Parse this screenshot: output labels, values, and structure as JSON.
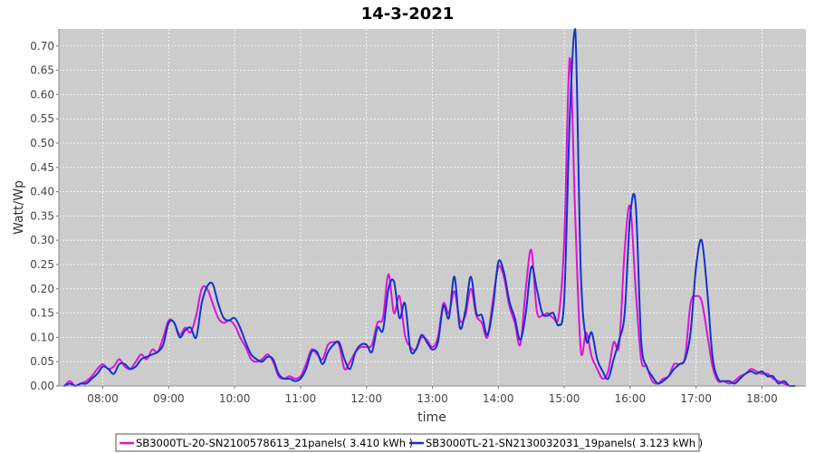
{
  "chart_data": {
    "type": "line",
    "title": "14-3-2021",
    "xlabel": "time",
    "ylabel": "Watt/Wp",
    "xlim": [
      "07:20",
      "18:40"
    ],
    "ylim": [
      0,
      0.735
    ],
    "x_ticks": [
      "08:00",
      "09:00",
      "10:00",
      "11:00",
      "12:00",
      "13:00",
      "14:00",
      "15:00",
      "16:00",
      "17:00",
      "18:00"
    ],
    "y_ticks": [
      "0.00",
      "0.05",
      "0.10",
      "0.15",
      "0.20",
      "0.25",
      "0.30",
      "0.35",
      "0.40",
      "0.45",
      "0.50",
      "0.55",
      "0.60",
      "0.65",
      "0.70"
    ],
    "grid": true,
    "plot_background": "#cccccc",
    "legend_position": "bottom",
    "series": [
      {
        "name": "SB3000TL-20-SN2100578613_21panels( 3.410 kWh )",
        "color": "#dd11dd",
        "points": [
          [
            "07:25",
            0.0
          ],
          [
            "07:30",
            0.01
          ],
          [
            "07:35",
            0.0
          ],
          [
            "07:40",
            0.005
          ],
          [
            "07:45",
            0.01
          ],
          [
            "07:50",
            0.02
          ],
          [
            "07:55",
            0.035
          ],
          [
            "08:00",
            0.045
          ],
          [
            "08:05",
            0.035
          ],
          [
            "08:10",
            0.04
          ],
          [
            "08:15",
            0.055
          ],
          [
            "08:20",
            0.04
          ],
          [
            "08:25",
            0.035
          ],
          [
            "08:30",
            0.05
          ],
          [
            "08:35",
            0.065
          ],
          [
            "08:40",
            0.055
          ],
          [
            "08:45",
            0.075
          ],
          [
            "08:50",
            0.07
          ],
          [
            "08:55",
            0.1
          ],
          [
            "09:00",
            0.135
          ],
          [
            "09:05",
            0.13
          ],
          [
            "09:10",
            0.105
          ],
          [
            "09:15",
            0.12
          ],
          [
            "09:20",
            0.11
          ],
          [
            "09:25",
            0.145
          ],
          [
            "09:30",
            0.2
          ],
          [
            "09:35",
            0.2
          ],
          [
            "09:40",
            0.17
          ],
          [
            "09:45",
            0.14
          ],
          [
            "09:50",
            0.13
          ],
          [
            "09:55",
            0.135
          ],
          [
            "10:00",
            0.125
          ],
          [
            "10:05",
            0.1
          ],
          [
            "10:10",
            0.08
          ],
          [
            "10:15",
            0.055
          ],
          [
            "10:20",
            0.05
          ],
          [
            "10:25",
            0.055
          ],
          [
            "10:30",
            0.065
          ],
          [
            "10:35",
            0.05
          ],
          [
            "10:40",
            0.02
          ],
          [
            "10:45",
            0.015
          ],
          [
            "10:50",
            0.02
          ],
          [
            "10:55",
            0.015
          ],
          [
            "11:00",
            0.02
          ],
          [
            "11:05",
            0.045
          ],
          [
            "11:10",
            0.075
          ],
          [
            "11:15",
            0.065
          ],
          [
            "11:20",
            0.055
          ],
          [
            "11:25",
            0.085
          ],
          [
            "11:30",
            0.09
          ],
          [
            "11:35",
            0.085
          ],
          [
            "11:40",
            0.035
          ],
          [
            "11:45",
            0.05
          ],
          [
            "11:50",
            0.07
          ],
          [
            "11:55",
            0.08
          ],
          [
            "12:00",
            0.08
          ],
          [
            "12:05",
            0.085
          ],
          [
            "12:10",
            0.13
          ],
          [
            "12:15",
            0.14
          ],
          [
            "12:20",
            0.23
          ],
          [
            "12:25",
            0.15
          ],
          [
            "12:30",
            0.185
          ],
          [
            "12:35",
            0.105
          ],
          [
            "12:40",
            0.08
          ],
          [
            "12:45",
            0.075
          ],
          [
            "12:50",
            0.1
          ],
          [
            "12:55",
            0.095
          ],
          [
            "13:00",
            0.08
          ],
          [
            "13:05",
            0.1
          ],
          [
            "13:10",
            0.17
          ],
          [
            "13:15",
            0.15
          ],
          [
            "13:20",
            0.195
          ],
          [
            "13:25",
            0.135
          ],
          [
            "13:30",
            0.145
          ],
          [
            "13:35",
            0.2
          ],
          [
            "13:40",
            0.145
          ],
          [
            "13:45",
            0.13
          ],
          [
            "13:50",
            0.1
          ],
          [
            "13:55",
            0.175
          ],
          [
            "14:00",
            0.245
          ],
          [
            "14:05",
            0.225
          ],
          [
            "14:10",
            0.165
          ],
          [
            "14:15",
            0.13
          ],
          [
            "14:20",
            0.085
          ],
          [
            "14:25",
            0.2
          ],
          [
            "14:30",
            0.28
          ],
          [
            "14:35",
            0.155
          ],
          [
            "14:40",
            0.145
          ],
          [
            "14:45",
            0.15
          ],
          [
            "14:50",
            0.14
          ],
          [
            "14:55",
            0.145
          ],
          [
            "15:00",
            0.3
          ],
          [
            "15:05",
            0.675
          ],
          [
            "15:10",
            0.35
          ],
          [
            "15:15",
            0.075
          ],
          [
            "15:20",
            0.11
          ],
          [
            "15:25",
            0.06
          ],
          [
            "15:30",
            0.035
          ],
          [
            "15:35",
            0.015
          ],
          [
            "15:40",
            0.03
          ],
          [
            "15:45",
            0.09
          ],
          [
            "15:50",
            0.085
          ],
          [
            "15:55",
            0.28
          ],
          [
            "16:00",
            0.37
          ],
          [
            "16:05",
            0.2
          ],
          [
            "16:10",
            0.055
          ],
          [
            "16:15",
            0.04
          ],
          [
            "16:20",
            0.01
          ],
          [
            "16:25",
            0.005
          ],
          [
            "16:30",
            0.015
          ],
          [
            "16:35",
            0.02
          ],
          [
            "16:40",
            0.045
          ],
          [
            "16:45",
            0.045
          ],
          [
            "16:50",
            0.06
          ],
          [
            "16:55",
            0.17
          ],
          [
            "17:00",
            0.185
          ],
          [
            "17:05",
            0.175
          ],
          [
            "17:10",
            0.11
          ],
          [
            "17:15",
            0.04
          ],
          [
            "17:20",
            0.01
          ],
          [
            "17:25",
            0.01
          ],
          [
            "17:30",
            0.005
          ],
          [
            "17:35",
            0.01
          ],
          [
            "17:40",
            0.02
          ],
          [
            "17:45",
            0.025
          ],
          [
            "17:50",
            0.035
          ],
          [
            "17:55",
            0.03
          ],
          [
            "18:00",
            0.025
          ],
          [
            "18:05",
            0.025
          ],
          [
            "18:10",
            0.015
          ],
          [
            "18:15",
            0.01
          ],
          [
            "18:20",
            0.005
          ],
          [
            "18:25",
            0.0
          ]
        ]
      },
      {
        "name": "SB3000TL-21-SN2130032031_19panels( 3.123 kWh )",
        "color": "#1133cc",
        "points": [
          [
            "07:25",
            0.0
          ],
          [
            "07:30",
            0.005
          ],
          [
            "07:35",
            0.0
          ],
          [
            "07:40",
            0.005
          ],
          [
            "07:45",
            0.005
          ],
          [
            "07:50",
            0.015
          ],
          [
            "07:55",
            0.025
          ],
          [
            "08:00",
            0.04
          ],
          [
            "08:05",
            0.035
          ],
          [
            "08:10",
            0.025
          ],
          [
            "08:15",
            0.045
          ],
          [
            "08:20",
            0.045
          ],
          [
            "08:25",
            0.035
          ],
          [
            "08:30",
            0.04
          ],
          [
            "08:35",
            0.055
          ],
          [
            "08:40",
            0.06
          ],
          [
            "08:45",
            0.065
          ],
          [
            "08:50",
            0.07
          ],
          [
            "08:55",
            0.085
          ],
          [
            "09:00",
            0.13
          ],
          [
            "09:05",
            0.13
          ],
          [
            "09:10",
            0.1
          ],
          [
            "09:15",
            0.115
          ],
          [
            "09:20",
            0.12
          ],
          [
            "09:25",
            0.1
          ],
          [
            "09:30",
            0.17
          ],
          [
            "09:35",
            0.205
          ],
          [
            "09:40",
            0.21
          ],
          [
            "09:45",
            0.17
          ],
          [
            "09:50",
            0.14
          ],
          [
            "09:55",
            0.135
          ],
          [
            "10:00",
            0.14
          ],
          [
            "10:05",
            0.12
          ],
          [
            "10:10",
            0.09
          ],
          [
            "10:15",
            0.065
          ],
          [
            "10:20",
            0.055
          ],
          [
            "10:25",
            0.05
          ],
          [
            "10:30",
            0.06
          ],
          [
            "10:35",
            0.055
          ],
          [
            "10:40",
            0.025
          ],
          [
            "10:45",
            0.015
          ],
          [
            "10:50",
            0.015
          ],
          [
            "10:55",
            0.01
          ],
          [
            "11:00",
            0.015
          ],
          [
            "11:05",
            0.035
          ],
          [
            "11:10",
            0.07
          ],
          [
            "11:15",
            0.07
          ],
          [
            "11:20",
            0.045
          ],
          [
            "11:25",
            0.07
          ],
          [
            "11:30",
            0.085
          ],
          [
            "11:35",
            0.09
          ],
          [
            "11:40",
            0.055
          ],
          [
            "11:45",
            0.035
          ],
          [
            "11:50",
            0.07
          ],
          [
            "11:55",
            0.085
          ],
          [
            "12:00",
            0.085
          ],
          [
            "12:05",
            0.07
          ],
          [
            "12:10",
            0.12
          ],
          [
            "12:15",
            0.115
          ],
          [
            "12:20",
            0.2
          ],
          [
            "12:25",
            0.215
          ],
          [
            "12:30",
            0.14
          ],
          [
            "12:35",
            0.17
          ],
          [
            "12:40",
            0.075
          ],
          [
            "12:45",
            0.075
          ],
          [
            "12:50",
            0.105
          ],
          [
            "12:55",
            0.09
          ],
          [
            "13:00",
            0.075
          ],
          [
            "13:05",
            0.09
          ],
          [
            "13:10",
            0.165
          ],
          [
            "13:15",
            0.14
          ],
          [
            "13:20",
            0.225
          ],
          [
            "13:25",
            0.12
          ],
          [
            "13:30",
            0.155
          ],
          [
            "13:35",
            0.225
          ],
          [
            "13:40",
            0.15
          ],
          [
            "13:45",
            0.145
          ],
          [
            "13:50",
            0.105
          ],
          [
            "13:55",
            0.16
          ],
          [
            "14:00",
            0.255
          ],
          [
            "14:05",
            0.235
          ],
          [
            "14:10",
            0.175
          ],
          [
            "14:15",
            0.14
          ],
          [
            "14:20",
            0.095
          ],
          [
            "14:25",
            0.15
          ],
          [
            "14:30",
            0.245
          ],
          [
            "14:35",
            0.2
          ],
          [
            "14:40",
            0.15
          ],
          [
            "14:45",
            0.145
          ],
          [
            "14:50",
            0.15
          ],
          [
            "14:55",
            0.125
          ],
          [
            "15:00",
            0.18
          ],
          [
            "15:05",
            0.55
          ],
          [
            "15:10",
            0.735
          ],
          [
            "15:15",
            0.24
          ],
          [
            "15:20",
            0.095
          ],
          [
            "15:25",
            0.11
          ],
          [
            "15:30",
            0.055
          ],
          [
            "15:35",
            0.03
          ],
          [
            "15:40",
            0.015
          ],
          [
            "15:45",
            0.055
          ],
          [
            "15:50",
            0.095
          ],
          [
            "15:55",
            0.15
          ],
          [
            "16:00",
            0.35
          ],
          [
            "16:05",
            0.375
          ],
          [
            "16:10",
            0.095
          ],
          [
            "16:15",
            0.04
          ],
          [
            "16:20",
            0.02
          ],
          [
            "16:25",
            0.005
          ],
          [
            "16:30",
            0.01
          ],
          [
            "16:35",
            0.02
          ],
          [
            "16:40",
            0.035
          ],
          [
            "16:45",
            0.045
          ],
          [
            "16:50",
            0.055
          ],
          [
            "16:55",
            0.11
          ],
          [
            "17:00",
            0.245
          ],
          [
            "17:05",
            0.3
          ],
          [
            "17:10",
            0.2
          ],
          [
            "17:15",
            0.06
          ],
          [
            "17:20",
            0.015
          ],
          [
            "17:25",
            0.01
          ],
          [
            "17:30",
            0.01
          ],
          [
            "17:35",
            0.005
          ],
          [
            "17:40",
            0.015
          ],
          [
            "17:45",
            0.025
          ],
          [
            "17:50",
            0.03
          ],
          [
            "17:55",
            0.025
          ],
          [
            "18:00",
            0.03
          ],
          [
            "18:05",
            0.02
          ],
          [
            "18:10",
            0.02
          ],
          [
            "18:15",
            0.005
          ],
          [
            "18:20",
            0.01
          ],
          [
            "18:25",
            0.0
          ],
          [
            "18:30",
            0.0
          ]
        ]
      }
    ]
  }
}
